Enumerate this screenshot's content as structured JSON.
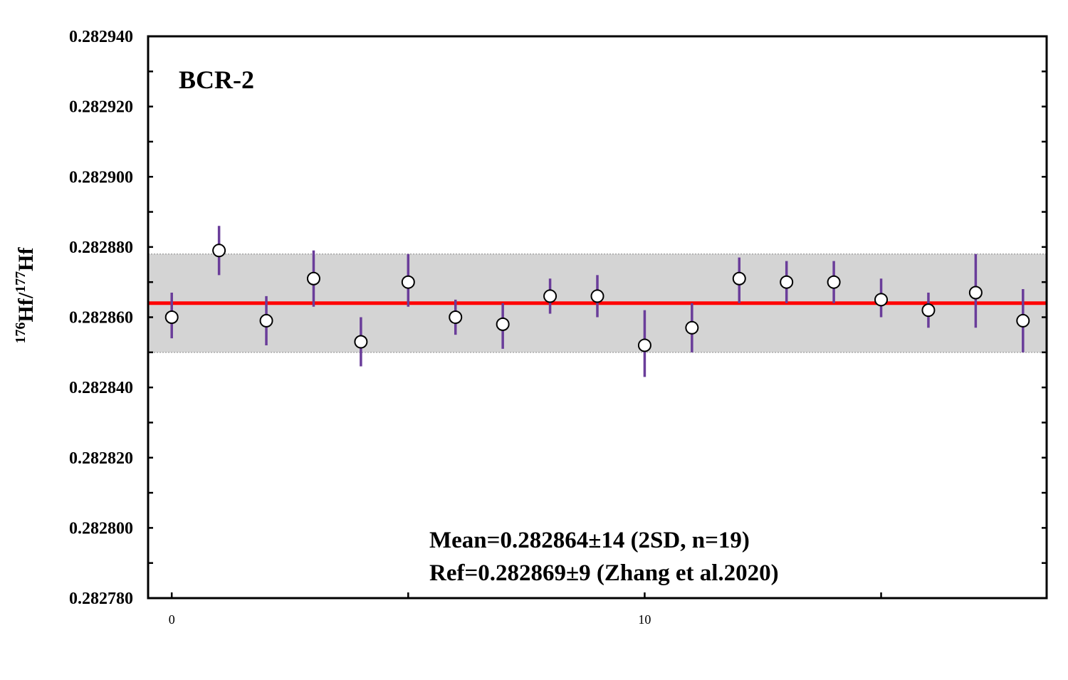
{
  "chart_data": {
    "type": "scatter",
    "sample_label": "BCR-2",
    "ylabel": {
      "parts": [
        {
          "text": "176",
          "sup": true
        },
        {
          "text": "Hf/",
          "sup": false
        },
        {
          "text": "177",
          "sup": true
        },
        {
          "text": "Hf",
          "sup": false
        }
      ]
    },
    "xlabel": "",
    "xlim": [
      -0.5,
      18.5
    ],
    "ylim": [
      0.28278,
      0.28294
    ],
    "x_ticks": [
      0,
      5,
      10,
      15
    ],
    "x_tick_labels": [
      "0",
      "",
      "10",
      ""
    ],
    "y_ticks": [
      0.28278,
      0.2828,
      0.28282,
      0.28284,
      0.28286,
      0.28288,
      0.2829,
      0.28292,
      0.28294
    ],
    "y_tick_labels": [
      "0.282780",
      "0.282800",
      "0.282820",
      "0.282840",
      "0.282860",
      "0.282880",
      "0.282900",
      "0.282920",
      "0.282940"
    ],
    "y_minor_step": 1e-05,
    "grid": false,
    "mean": 0.282864,
    "band": [
      0.28285,
      0.282878
    ],
    "colors": {
      "mean_line": "#ff0000",
      "band_fill": "#d4d4d4",
      "band_border": "#a8a8a8",
      "error_bar": "#6a3d9a",
      "marker_fill": "#ffffff",
      "marker_stroke": "#000000"
    },
    "points": [
      {
        "x": 0,
        "y": 0.28286,
        "err_low": 0.282854,
        "err_high": 0.282867
      },
      {
        "x": 1,
        "y": 0.282879,
        "err_low": 0.282872,
        "err_high": 0.282886
      },
      {
        "x": 2,
        "y": 0.282859,
        "err_low": 0.282852,
        "err_high": 0.282866
      },
      {
        "x": 3,
        "y": 0.282871,
        "err_low": 0.282863,
        "err_high": 0.282879
      },
      {
        "x": 4,
        "y": 0.282853,
        "err_low": 0.282846,
        "err_high": 0.28286
      },
      {
        "x": 5,
        "y": 0.28287,
        "err_low": 0.282863,
        "err_high": 0.282878
      },
      {
        "x": 6,
        "y": 0.28286,
        "err_low": 0.282855,
        "err_high": 0.282865
      },
      {
        "x": 7,
        "y": 0.282858,
        "err_low": 0.282851,
        "err_high": 0.282864
      },
      {
        "x": 8,
        "y": 0.282866,
        "err_low": 0.282861,
        "err_high": 0.282871
      },
      {
        "x": 9,
        "y": 0.282866,
        "err_low": 0.28286,
        "err_high": 0.282872
      },
      {
        "x": 10,
        "y": 0.282852,
        "err_low": 0.282843,
        "err_high": 0.282862
      },
      {
        "x": 11,
        "y": 0.282857,
        "err_low": 0.28285,
        "err_high": 0.282864
      },
      {
        "x": 12,
        "y": 0.282871,
        "err_low": 0.282864,
        "err_high": 0.282877
      },
      {
        "x": 13,
        "y": 0.28287,
        "err_low": 0.282864,
        "err_high": 0.282876
      },
      {
        "x": 14,
        "y": 0.28287,
        "err_low": 0.282864,
        "err_high": 0.282876
      },
      {
        "x": 15,
        "y": 0.282865,
        "err_low": 0.28286,
        "err_high": 0.282871
      },
      {
        "x": 16,
        "y": 0.282862,
        "err_low": 0.282857,
        "err_high": 0.282867
      },
      {
        "x": 17,
        "y": 0.282867,
        "err_low": 0.282857,
        "err_high": 0.282878
      },
      {
        "x": 18,
        "y": 0.282859,
        "err_low": 0.28285,
        "err_high": 0.282868
      }
    ],
    "annotations": [
      "Mean=0.282864±14 (2SD, n=19)",
      "Ref=0.282869±9 (Zhang et al.2020)"
    ]
  }
}
